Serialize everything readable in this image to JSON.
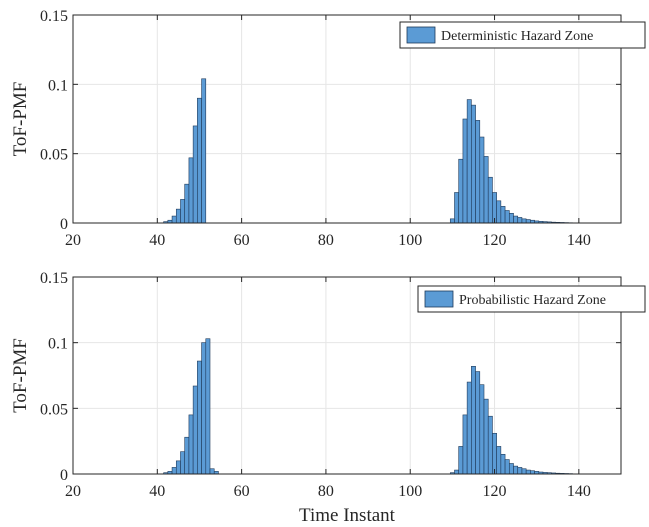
{
  "chart_data": [
    {
      "type": "bar",
      "title": "",
      "xlabel": "",
      "ylabel": "ToF-PMF",
      "xlim": [
        20,
        150
      ],
      "ylim": [
        0,
        0.15
      ],
      "xticks": [
        20,
        40,
        60,
        80,
        100,
        120,
        140
      ],
      "yticks": [
        0,
        0.05,
        0.1,
        0.15
      ],
      "yticklabels": [
        "0",
        "0.05",
        "0.1",
        "0.15"
      ],
      "grid": true,
      "legend_position": "top-right",
      "bar_color": "#5b9bd5",
      "series": [
        {
          "name": "Deterministic Hazard Zone",
          "x": [
            42,
            43,
            44,
            45,
            46,
            47,
            48,
            49,
            50,
            51,
            110,
            111,
            112,
            113,
            114,
            115,
            116,
            117,
            118,
            119,
            120,
            121,
            122,
            123,
            124,
            125,
            126,
            127,
            128,
            129,
            130,
            131,
            132,
            133,
            134,
            135,
            136,
            137,
            138,
            139
          ],
          "values": [
            0.001,
            0.002,
            0.005,
            0.01,
            0.017,
            0.028,
            0.047,
            0.07,
            0.09,
            0.104,
            0.003,
            0.022,
            0.046,
            0.075,
            0.089,
            0.085,
            0.074,
            0.062,
            0.048,
            0.033,
            0.022,
            0.016,
            0.012,
            0.009,
            0.007,
            0.005,
            0.004,
            0.003,
            0.0025,
            0.002,
            0.0015,
            0.0012,
            0.001,
            0.0008,
            0.0006,
            0.0005,
            0.0004,
            0.0003,
            0.0002,
            0.0001
          ]
        }
      ]
    },
    {
      "type": "bar",
      "title": "",
      "xlabel": "Time Instant",
      "ylabel": "ToF-PMF",
      "xlim": [
        20,
        150
      ],
      "ylim": [
        0,
        0.15
      ],
      "xticks": [
        20,
        40,
        60,
        80,
        100,
        120,
        140
      ],
      "yticks": [
        0,
        0.05,
        0.1,
        0.15
      ],
      "yticklabels": [
        "0",
        "0.05",
        "0.1",
        "0.15"
      ],
      "grid": true,
      "legend_position": "top-right",
      "bar_color": "#5b9bd5",
      "series": [
        {
          "name": "Probabilistic Hazard Zone",
          "x": [
            42,
            43,
            44,
            45,
            46,
            47,
            48,
            49,
            50,
            51,
            52,
            53,
            54,
            110,
            111,
            112,
            113,
            114,
            115,
            116,
            117,
            118,
            119,
            120,
            121,
            122,
            123,
            124,
            125,
            126,
            127,
            128,
            129,
            130,
            131,
            132,
            133,
            134,
            135,
            136,
            137,
            138,
            139
          ],
          "values": [
            0.001,
            0.002,
            0.005,
            0.01,
            0.017,
            0.028,
            0.045,
            0.067,
            0.086,
            0.1,
            0.103,
            0.004,
            0.002,
            0.001,
            0.003,
            0.021,
            0.045,
            0.07,
            0.082,
            0.078,
            0.068,
            0.057,
            0.044,
            0.031,
            0.021,
            0.015,
            0.011,
            0.008,
            0.006,
            0.005,
            0.004,
            0.003,
            0.0025,
            0.002,
            0.0015,
            0.0012,
            0.001,
            0.0008,
            0.0006,
            0.0005,
            0.0004,
            0.0003,
            0.0001
          ]
        }
      ]
    }
  ]
}
